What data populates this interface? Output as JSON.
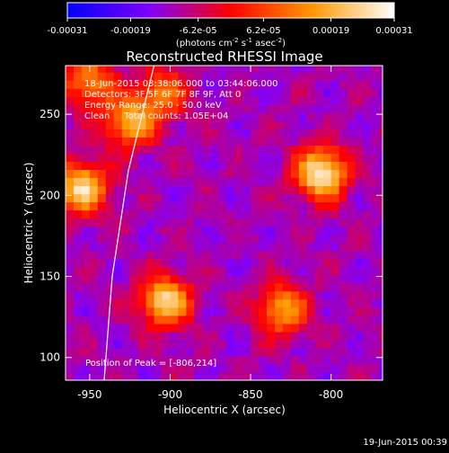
{
  "chart_data": {
    "type": "heatmap",
    "title": "Reconstructed RHESSI Image",
    "xlabel": "Heliocentric X (arcsec)",
    "ylabel": "Heliocentric Y (arcsec)",
    "xlim": [
      -965,
      -768
    ],
    "ylim": [
      86,
      280
    ],
    "x_ticks": [
      -950,
      -900,
      -850,
      -800
    ],
    "y_ticks": [
      100,
      150,
      200,
      250
    ],
    "colorbar": {
      "min": -0.00031,
      "max": 0.00031,
      "tick_values": [
        -0.00031,
        -0.00019,
        -6.2e-05,
        6.2e-05,
        0.00019,
        0.00031
      ],
      "tick_labels": [
        "-0.00031",
        "-0.00019",
        "-6.2e-05",
        "6.2e-05",
        "0.00019",
        "0.00031"
      ],
      "units": {
        "base": "(photons cm",
        "e1": "-2",
        "mid": " s",
        "e2": "-1",
        "mid2": " asec",
        "e3": "-2",
        "end": ")"
      },
      "colors": [
        "#0000ff",
        "#7f00ff",
        "#ff0000",
        "#ff9900",
        "#ffffff"
      ]
    },
    "info_lines": [
      "18-Jun-2015 03:38:06.000 to 03:44:06.000",
      "Detectors: 3F 5F 6F 7F 8F 9F, Att 0",
      "Energy Range: 25.0 - 50.0 keV",
      "Clean     Total counts: 1.05E+04"
    ],
    "peak_label": "Position of Peak = [-806,214]",
    "peak": [
      -806,
      214
    ],
    "bright_sources": [
      {
        "x": -806,
        "y": 214,
        "value": 0.00031
      },
      {
        "x": -955,
        "y": 205,
        "value": 0.00026
      },
      {
        "x": -903,
        "y": 135,
        "value": 0.00024
      },
      {
        "x": -925,
        "y": 245,
        "value": 0.00018
      },
      {
        "x": -830,
        "y": 130,
        "value": 0.00017
      },
      {
        "x": -950,
        "y": 270,
        "value": 0.00015
      },
      {
        "x": -905,
        "y": 263,
        "value": 0.00012
      }
    ],
    "limb_curve": [
      [
        -941,
        86
      ],
      [
        -936,
        150
      ],
      [
        -926,
        215
      ],
      [
        -910,
        280
      ]
    ],
    "timestamp": "19-Jun-2015 00:39"
  }
}
